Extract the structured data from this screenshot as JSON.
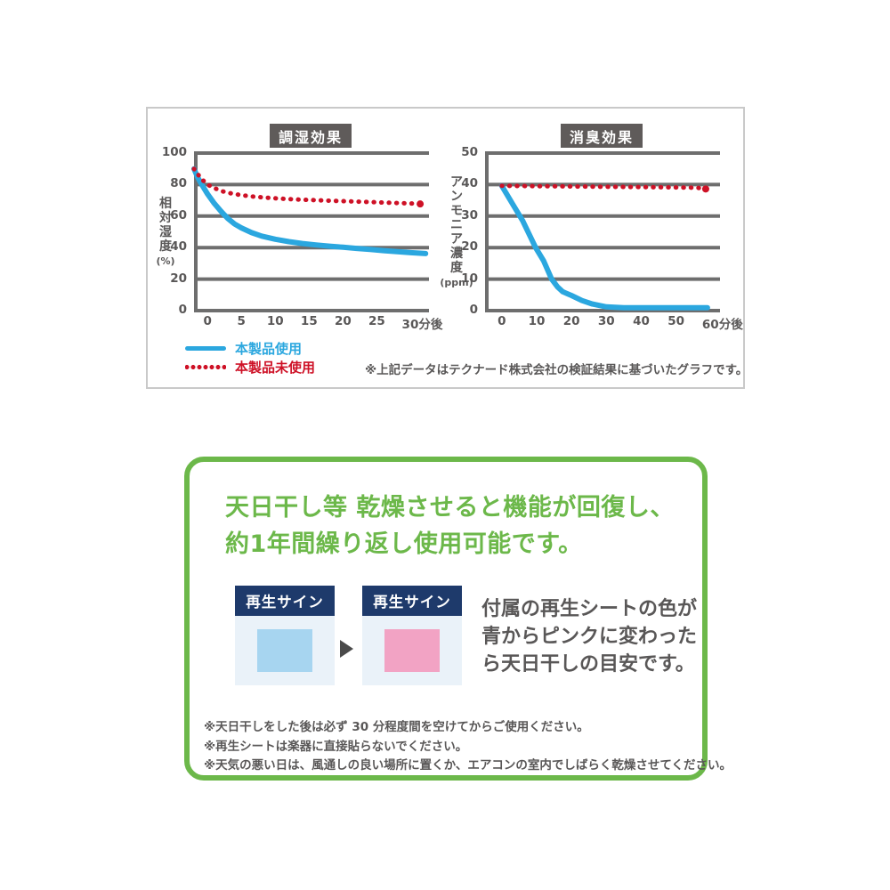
{
  "charts_panel": {
    "border_color": "#c9c9c9",
    "legend": [
      {
        "label": "本製品使用",
        "color": "#2BA7DF",
        "style": "solid"
      },
      {
        "label": "本製品未使用",
        "color": "#CE1126",
        "style": "dotted"
      }
    ],
    "note": "※上記データはテクナード株式会社の検証結果に基づいたグラフです。"
  },
  "chart_data": [
    {
      "type": "line",
      "title": "調湿効果",
      "ylabel": "相対湿度",
      "yunit": "(%)",
      "yticks": [
        0,
        20,
        40,
        60,
        80,
        100
      ],
      "ylim": [
        0,
        100
      ],
      "xticks": [
        0,
        5,
        10,
        15,
        20,
        25,
        30
      ],
      "xtick_suffix": "分後",
      "xlim": [
        -2,
        32.7
      ],
      "grid": "horizontal",
      "legend_position": "below",
      "series": [
        {
          "name": "本製品使用",
          "color": "#2BA7DF",
          "style": "solid",
          "points": [
            [
              -2,
              90
            ],
            [
              -1.5,
              85
            ],
            [
              -1,
              81
            ],
            [
              0,
              74
            ],
            [
              1,
              68
            ],
            [
              2,
              63
            ],
            [
              3,
              58.5
            ],
            [
              4,
              55
            ],
            [
              5,
              52.5
            ],
            [
              6.5,
              49.5
            ],
            [
              8,
              47.3
            ],
            [
              10,
              45.3
            ],
            [
              12,
              43.8
            ],
            [
              14,
              42.6
            ],
            [
              16,
              41.7
            ],
            [
              18,
              40.9
            ],
            [
              20,
              40.2
            ],
            [
              22,
              39.5
            ],
            [
              24,
              38.8
            ],
            [
              26,
              38.1
            ],
            [
              28,
              37.4
            ],
            [
              30,
              36.8
            ],
            [
              32.2,
              36.2
            ]
          ]
        },
        {
          "name": "本製品未使用",
          "color": "#CE1126",
          "style": "dotted",
          "end_dot": true,
          "points": [
            [
              -2,
              90
            ],
            [
              -1.5,
              87
            ],
            [
              -1,
              84
            ],
            [
              0,
              80
            ],
            [
              1,
              77.8
            ],
            [
              2,
              76
            ],
            [
              3,
              74.8
            ],
            [
              4,
              74
            ],
            [
              5,
              73.3
            ],
            [
              6.5,
              72.5
            ],
            [
              8,
              71.9
            ],
            [
              10,
              71.3
            ],
            [
              12,
              70.8
            ],
            [
              14,
              70.4
            ],
            [
              16,
              70.1
            ],
            [
              18,
              69.8
            ],
            [
              20,
              69.5
            ],
            [
              22,
              69.2
            ],
            [
              24,
              68.9
            ],
            [
              26,
              68.6
            ],
            [
              28,
              68.3
            ],
            [
              30,
              68
            ],
            [
              31.4,
              67.7
            ]
          ]
        }
      ]
    },
    {
      "type": "line",
      "title": "消臭効果",
      "ylabel": "アンモニア濃度",
      "yunit": "(ppm)",
      "yticks": [
        0,
        10,
        20,
        30,
        40,
        50
      ],
      "ylim": [
        0,
        50
      ],
      "xticks": [
        0,
        10,
        20,
        30,
        40,
        50,
        60
      ],
      "xtick_suffix": "分後",
      "xlim": [
        -4.8,
        62.6
      ],
      "grid": "horizontal",
      "legend_position": "below",
      "series": [
        {
          "name": "本製品使用",
          "color": "#2BA7DF",
          "style": "solid",
          "points": [
            [
              0,
              39.6
            ],
            [
              3,
              34
            ],
            [
              6,
              28.5
            ],
            [
              9.7,
              20
            ],
            [
              12,
              15.8
            ],
            [
              14.3,
              10
            ],
            [
              16,
              7.5
            ],
            [
              17.5,
              6
            ],
            [
              20,
              4.8
            ],
            [
              23,
              3.2
            ],
            [
              26,
              2.1
            ],
            [
              30,
              1.2
            ],
            [
              35,
              0.9
            ],
            [
              45,
              0.9
            ],
            [
              59,
              0.9
            ]
          ]
        },
        {
          "name": "本製品未使用",
          "color": "#CE1126",
          "style": "dotted",
          "end_dot": true,
          "points": [
            [
              0,
              39.6
            ],
            [
              10,
              39.5
            ],
            [
              20,
              39.4
            ],
            [
              30,
              39.3
            ],
            [
              40,
              39.2
            ],
            [
              50,
              39.1
            ],
            [
              56,
              39
            ],
            [
              58.5,
              38.6
            ]
          ]
        }
      ]
    }
  ],
  "recovery_panel": {
    "border_color": "#6CB84A",
    "heading_line1": "天日干し等 乾燥させると機能が回復し、",
    "heading_line2": "約1年間繰り返し使用可能です。",
    "sign_cards": [
      {
        "title": "再生サイン",
        "header_color": "#1E3A6B",
        "body_color": "#EAF2F9",
        "swatch_color": "#A7D5F0",
        "state": "blue"
      },
      {
        "title": "再生サイン",
        "header_color": "#1E3A6B",
        "body_color": "#EAF2F9",
        "swatch_color": "#F2A3C4",
        "state": "pink"
      }
    ],
    "arrow_icon": "right-triangle",
    "description_lines": [
      "付属の再生シートの色が",
      "青からピンクに変わった",
      "ら天日干しの目安です。"
    ],
    "footnotes": [
      "※天日干しをした後は必ず 30 分程度間を空けてからご使用ください。",
      "※再生シートは楽器に直接貼らないでください。",
      "※天気の悪い日は、風通しの良い場所に置くか、エアコンの室内でしばらく乾燥させてください。"
    ]
  }
}
